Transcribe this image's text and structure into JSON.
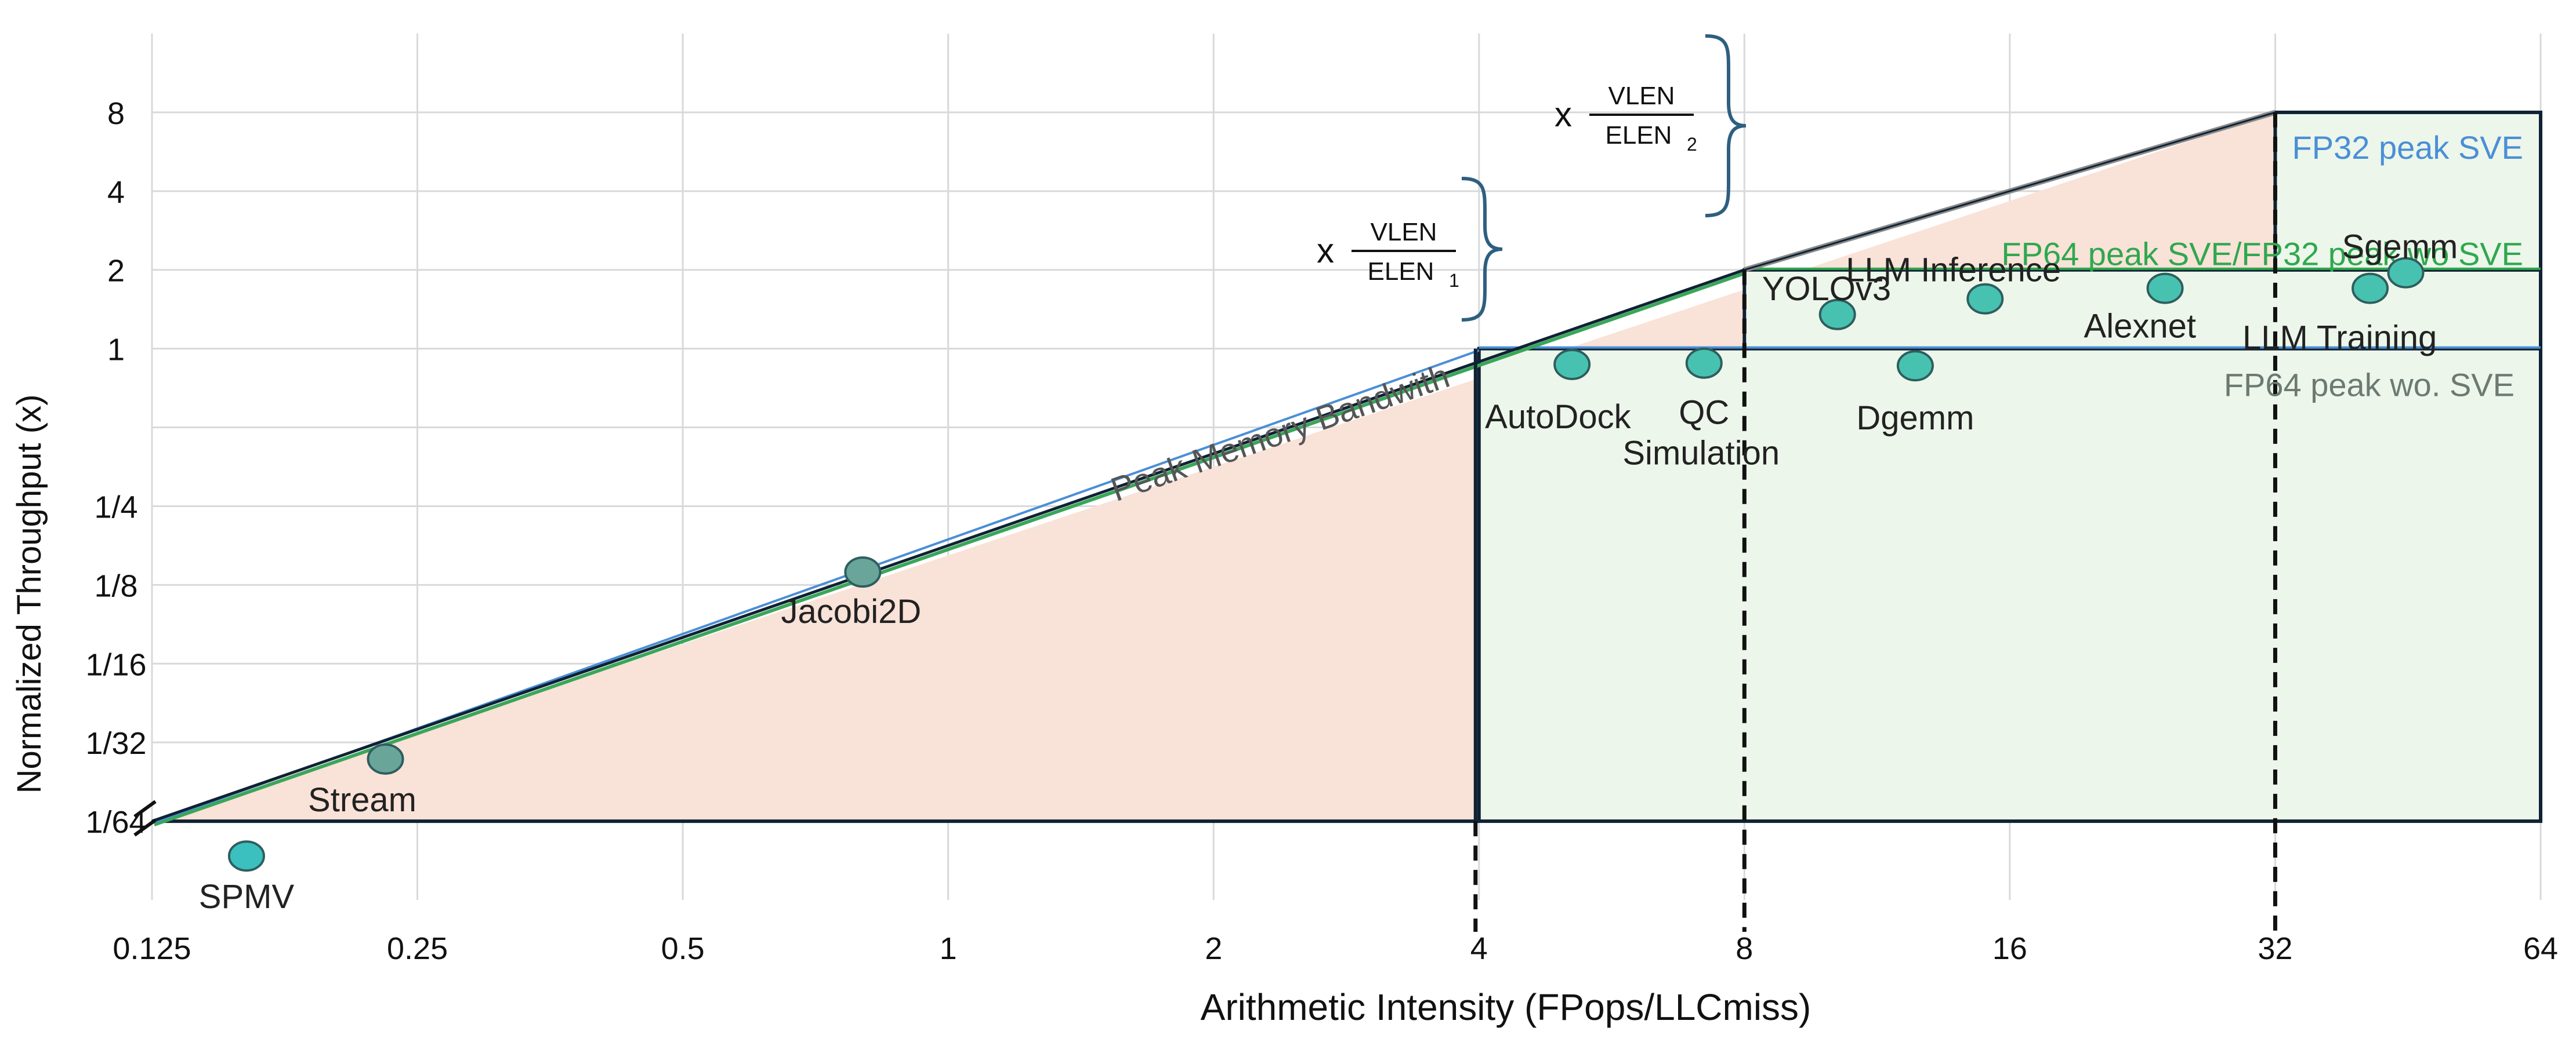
{
  "chart_data": {
    "type": "scatter",
    "title": "",
    "xlabel": "Arithmetic Intensity (FPops/LLCmiss)",
    "ylabel": "Normalized Throughput (x)",
    "x_scale": "log2",
    "y_scale": "log2",
    "xlim": [
      0.125,
      64
    ],
    "ylim": [
      0.0078125,
      16
    ],
    "grid": true,
    "x_ticks": [
      {
        "value": 0.125,
        "label": "0.125"
      },
      {
        "value": 0.25,
        "label": "0.25"
      },
      {
        "value": 0.5,
        "label": "0.5"
      },
      {
        "value": 1,
        "label": "1"
      },
      {
        "value": 2,
        "label": "2"
      },
      {
        "value": 4,
        "label": "4"
      },
      {
        "value": 8,
        "label": "8"
      },
      {
        "value": 16,
        "label": "16"
      },
      {
        "value": 32,
        "label": "32"
      },
      {
        "value": 64,
        "label": "64"
      }
    ],
    "y_ticks": [
      {
        "value": 0.015625,
        "label": "1/64"
      },
      {
        "value": 0.03125,
        "label": "1/32"
      },
      {
        "value": 0.0625,
        "label": "1/16"
      },
      {
        "value": 0.125,
        "label": "1/8"
      },
      {
        "value": 0.25,
        "label": "1/4"
      },
      {
        "value": 1,
        "label": "1"
      },
      {
        "value": 2,
        "label": "2"
      },
      {
        "value": 4,
        "label": "4"
      },
      {
        "value": 8,
        "label": "8"
      }
    ],
    "y_gridlines": [
      0.015625,
      0.03125,
      0.0625,
      0.125,
      0.25,
      0.5,
      1,
      2,
      4,
      8
    ],
    "roofline": {
      "bandwidth_label": "Peak Memory Bandwith",
      "ridge_points": [
        {
          "x": 4,
          "y": 1
        },
        {
          "x": 8,
          "y": 2
        },
        {
          "x": 32,
          "y": 8
        }
      ],
      "peaks": [
        {
          "label": "FP32 peak SVE",
          "value": 8,
          "color": "#4a8fd6"
        },
        {
          "label": "FP64 peak SVE/FP32 peak wo SVE",
          "value": 2,
          "color": "#2fa84f"
        },
        {
          "label": "FP64 peak wo. SVE",
          "value": 1,
          "color": "#6b7a72"
        }
      ],
      "scale_annotations": [
        {
          "prefix": "x",
          "numerator": "VLEN",
          "denominator": "ELEN",
          "subscript": "1"
        },
        {
          "prefix": "x",
          "numerator": "VLEN",
          "denominator": "ELEN",
          "subscript": "2"
        }
      ]
    },
    "series": [
      {
        "points": [
          {
            "label": "SPMV",
            "x": 0.16,
            "y": 0.0115,
            "color": "#3bbfbf"
          },
          {
            "label": "Stream",
            "x": 0.23,
            "y": 0.027,
            "color": "#6aa59a"
          },
          {
            "label": "Jacobi2D",
            "x": 0.8,
            "y": 0.14,
            "color": "#6aa59a"
          },
          {
            "label": "AutoDock",
            "x": 5.1,
            "y": 0.87,
            "color": "#48c2b0"
          },
          {
            "label": "QC Simulation",
            "x": 7.2,
            "y": 0.88,
            "color": "#48c2b0"
          },
          {
            "label": "Dgemm",
            "x": 12.5,
            "y": 0.86,
            "color": "#48c2b0"
          },
          {
            "label": "YOLOv3",
            "x": 10.2,
            "y": 1.35,
            "color": "#48c2b0"
          },
          {
            "label": "LLM Inference",
            "x": 15,
            "y": 1.55,
            "color": "#48c2b0"
          },
          {
            "label": "Alexnet",
            "x": 24,
            "y": 1.7,
            "color": "#48c2b0"
          },
          {
            "label": "LLM Training",
            "x": 41,
            "y": 1.7,
            "color": "#48c2b0"
          },
          {
            "label": "Sgemm",
            "x": 45,
            "y": 1.95,
            "color": "#48c2b0"
          }
        ]
      }
    ],
    "colors": {
      "memory_region": "#f9e2d8",
      "compute_region": "#edf6ea",
      "frame": "#0f2233",
      "bracket": "#2e5f80",
      "grid": "#d9d9d9"
    }
  }
}
